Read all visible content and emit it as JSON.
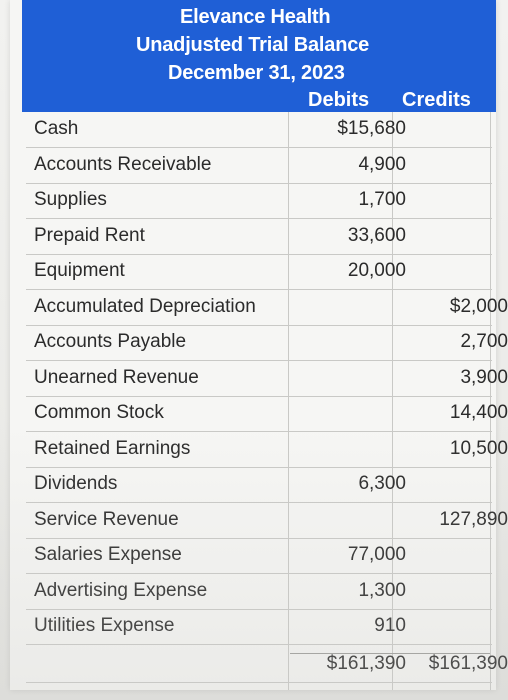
{
  "header": {
    "company": "Elevance Health",
    "report": "Unadjusted Trial Balance",
    "date": "December 31, 2023",
    "debits_label": "Debits",
    "credits_label": "Credits"
  },
  "rows": [
    {
      "account": "Cash",
      "debit": "$15,680",
      "credit": ""
    },
    {
      "account": "Accounts Receivable",
      "debit": "4,900",
      "credit": ""
    },
    {
      "account": "Supplies",
      "debit": "1,700",
      "credit": ""
    },
    {
      "account": "Prepaid Rent",
      "debit": "33,600",
      "credit": ""
    },
    {
      "account": "Equipment",
      "debit": "20,000",
      "credit": ""
    },
    {
      "account": "Accumulated Depreciation",
      "debit": "",
      "credit": "$2,000"
    },
    {
      "account": "Accounts Payable",
      "debit": "",
      "credit": "2,700"
    },
    {
      "account": "Unearned Revenue",
      "debit": "",
      "credit": "3,900"
    },
    {
      "account": "Common Stock",
      "debit": "",
      "credit": "14,400"
    },
    {
      "account": "Retained Earnings",
      "debit": "",
      "credit": "10,500"
    },
    {
      "account": "Dividends",
      "debit": "6,300",
      "credit": ""
    },
    {
      "account": "Service Revenue",
      "debit": "",
      "credit": "127,890"
    },
    {
      "account": "Salaries Expense",
      "debit": "77,000",
      "credit": ""
    },
    {
      "account": "Advertising Expense",
      "debit": "1,300",
      "credit": ""
    },
    {
      "account": "Utilities Expense",
      "debit": "910",
      "credit": ""
    }
  ],
  "totals": {
    "account": "",
    "debit": "$161,390",
    "credit": "$161,390"
  }
}
